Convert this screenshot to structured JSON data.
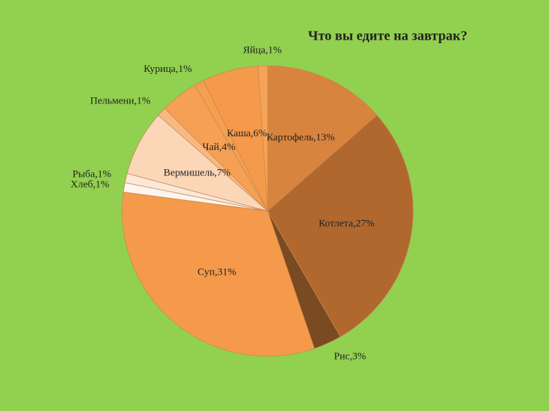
{
  "chart_data": {
    "type": "pie",
    "title": "Что вы едите на завтрак?",
    "values": [
      13,
      27,
      3,
      31,
      1,
      1,
      7,
      1,
      4,
      1,
      6,
      1
    ],
    "value_labels": [
      "Картофель,13%",
      "Котлета,27%",
      "Рис,3%",
      "Суп,31%",
      "Хлеб,1%",
      "Рыба,1%",
      "Вермишель,7%",
      "Пельмени,1%",
      "Чай,4%",
      "Курица,1%",
      "Каша,6%",
      "Яйца,1%"
    ],
    "colors": [
      "#d8843f",
      "#b0682f",
      "#7a4a23",
      "#f49a4a",
      "#fdf5ee",
      "#fbe8d8",
      "#fbd7b8",
      "#f8b882",
      "#f5a055",
      "#f4a050",
      "#f49a4a",
      "#f5a457"
    ]
  }
}
